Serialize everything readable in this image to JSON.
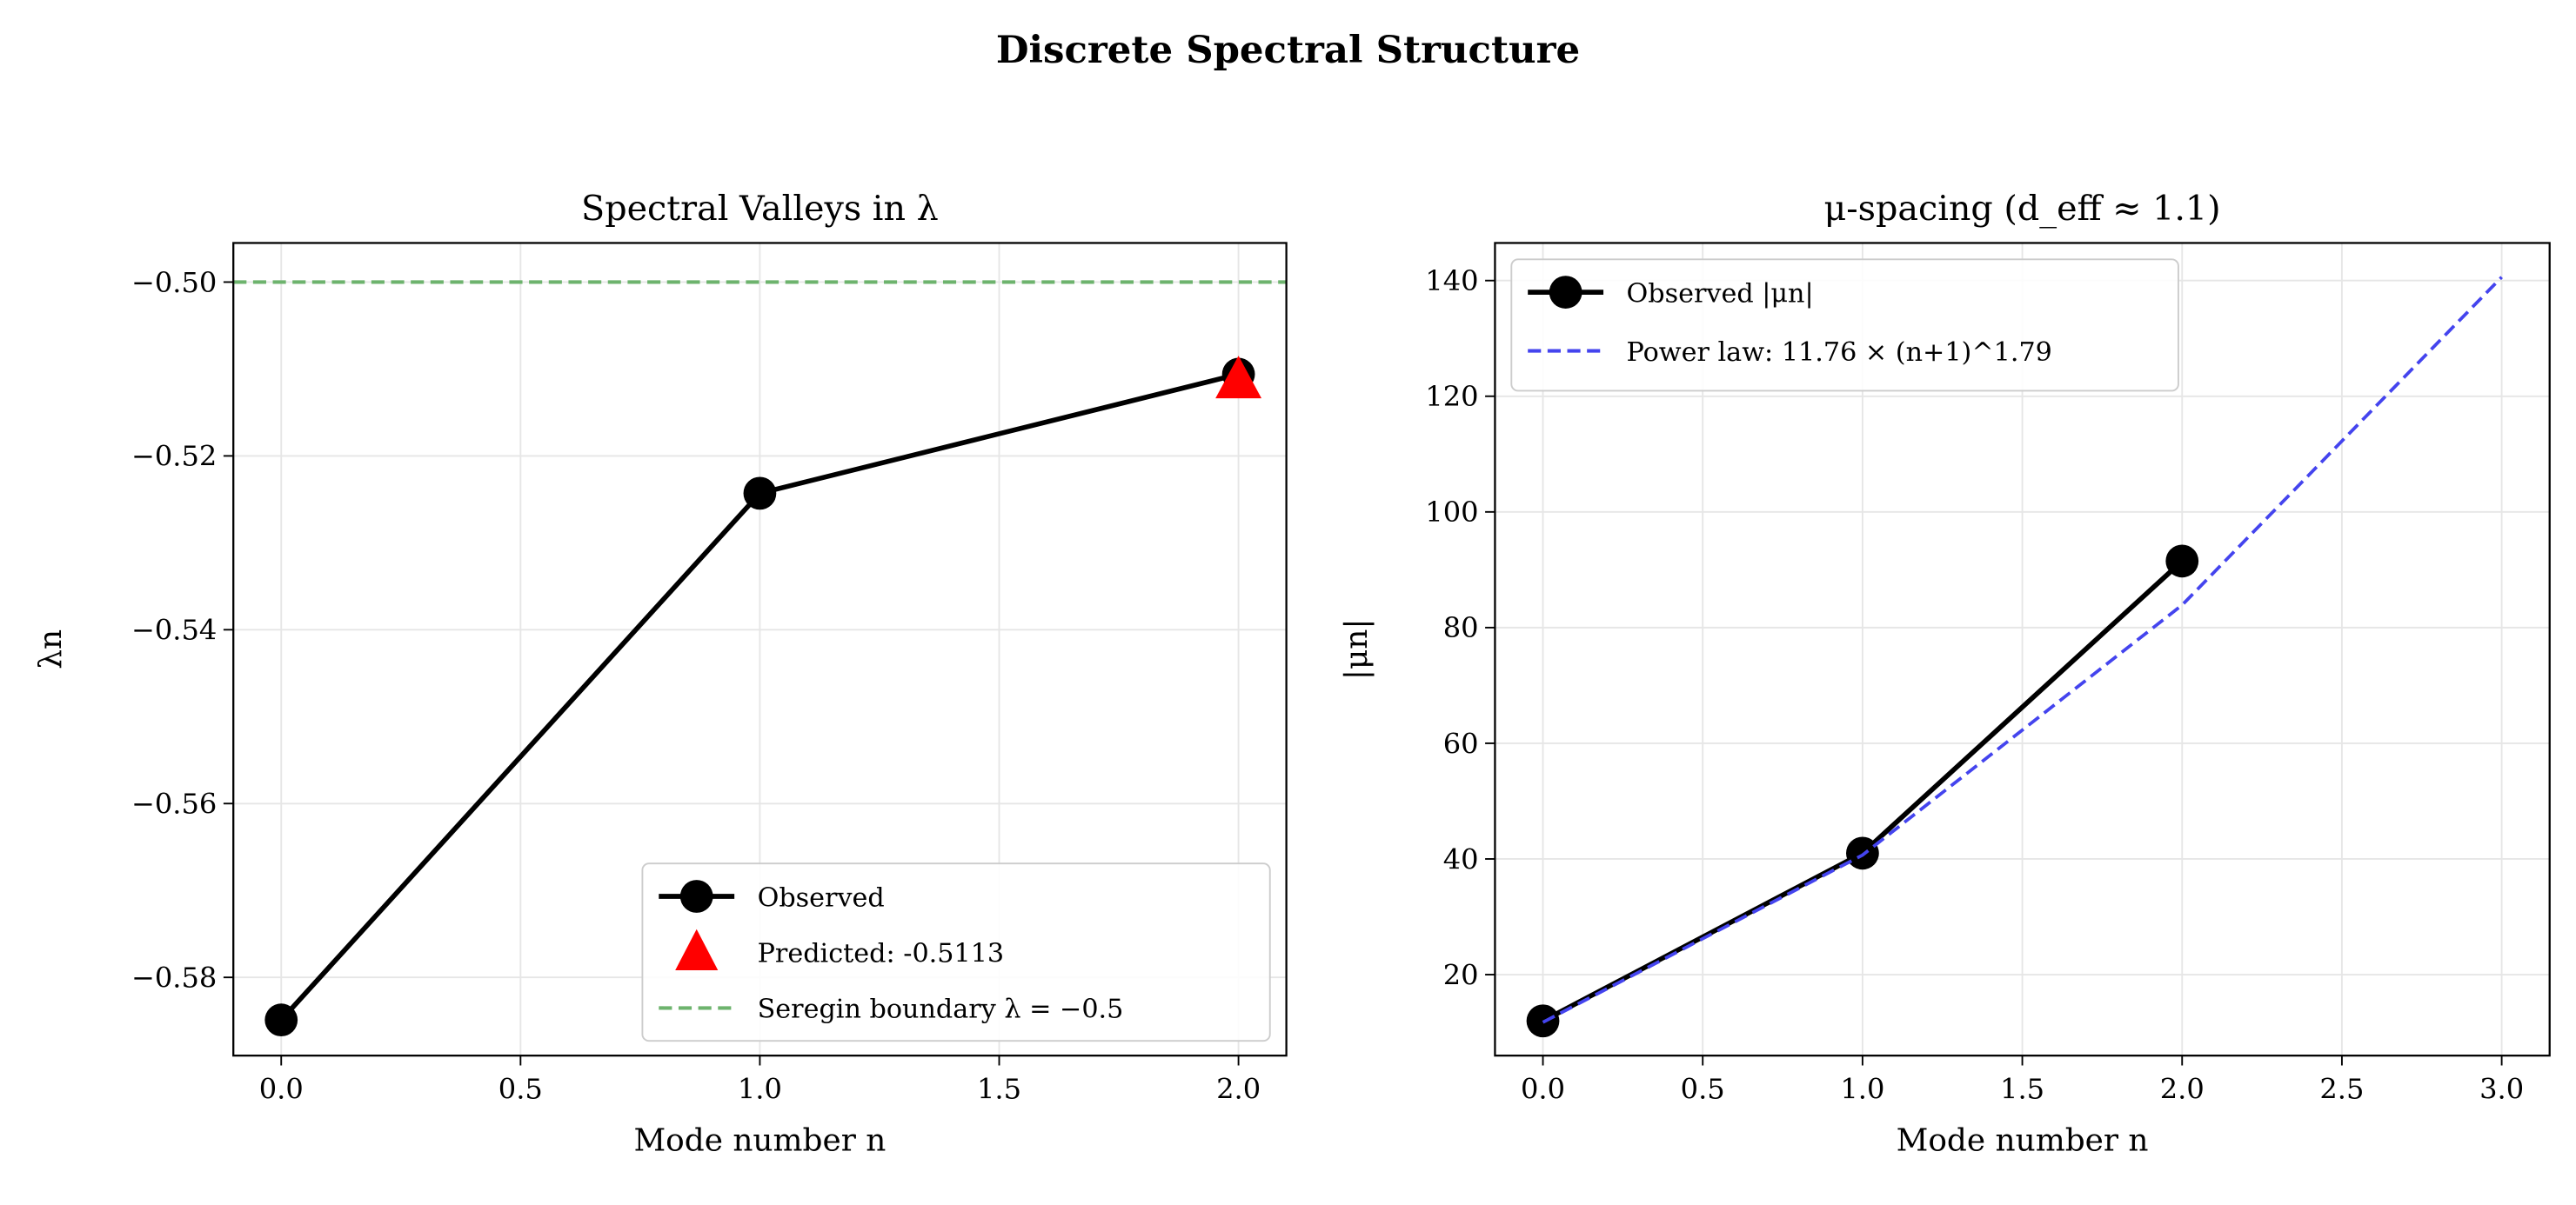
{
  "figure_title": "Discrete Spectral Structure",
  "chart_data": [
    {
      "type": "line",
      "title": "Spectral Valleys in λ",
      "xlabel": "Mode number n",
      "ylabel": "λn",
      "xlim": [
        -0.1,
        2.1
      ],
      "ylim": [
        -0.589,
        -0.4955
      ],
      "xticks": [
        0.0,
        0.5,
        1.0,
        1.5,
        2.0
      ],
      "xtick_labels": [
        "0.0",
        "0.5",
        "1.0",
        "1.5",
        "2.0"
      ],
      "yticks": [
        -0.58,
        -0.56,
        -0.54,
        -0.52,
        -0.5
      ],
      "ytick_labels": [
        "−0.58",
        "−0.56",
        "−0.54",
        "−0.52",
        "−0.50"
      ],
      "grid": true,
      "legend_position": "lower-right",
      "series": [
        {
          "name": "Observed",
          "kind": "line-marker",
          "color": "#000000",
          "x": [
            0,
            1,
            2
          ],
          "y": [
            -0.5849,
            -0.5243,
            -0.5106
          ]
        },
        {
          "name": "Predicted: -0.5113",
          "kind": "triangle-marker",
          "color": "#ff0000",
          "x": [
            2
          ],
          "y": [
            -0.5113
          ]
        },
        {
          "name": "Seregin boundary λ = −0.5",
          "kind": "hline-dashed",
          "color": "#6db36d",
          "y": -0.5
        }
      ]
    },
    {
      "type": "line",
      "title": "μ-spacing (d_eff ≈ 1.1)",
      "xlabel": "Mode number n",
      "ylabel": "|μn|",
      "xlim": [
        -0.15,
        3.15
      ],
      "ylim": [
        6,
        146.5
      ],
      "xticks": [
        0.0,
        0.5,
        1.0,
        1.5,
        2.0,
        2.5,
        3.0
      ],
      "xtick_labels": [
        "0.0",
        "0.5",
        "1.0",
        "1.5",
        "2.0",
        "2.5",
        "3.0"
      ],
      "yticks": [
        20,
        40,
        60,
        80,
        100,
        120,
        140
      ],
      "ytick_labels": [
        "20",
        "40",
        "60",
        "80",
        "100",
        "120",
        "140"
      ],
      "grid": true,
      "legend_position": "upper-left",
      "series": [
        {
          "name": "Observed |μn|",
          "kind": "line-marker",
          "color": "#000000",
          "x": [
            0,
            1,
            2
          ],
          "y": [
            12,
            41,
            91.5
          ]
        },
        {
          "name": "Power law: 11.76 × (n+1)^1.79",
          "kind": "line-dashed",
          "color": "#4444ee",
          "x": [
            0,
            1,
            2,
            3
          ],
          "y": [
            11.76,
            40.67,
            83.9,
            140.6
          ]
        }
      ]
    }
  ]
}
